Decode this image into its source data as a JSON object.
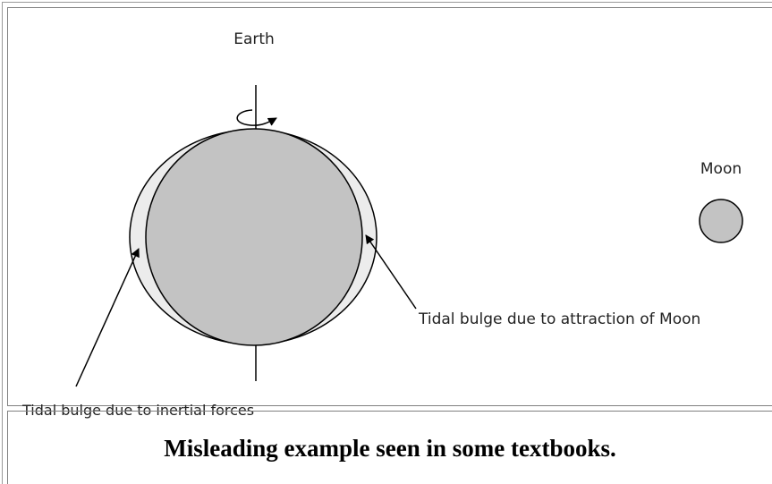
{
  "diagram": {
    "earth_label": "Earth",
    "moon_label": "Moon",
    "labels": [
      "Tidal bulge due to attraction of Moon",
      "Tidal bulge due to inertial forces"
    ]
  },
  "caption": "Misleading example seen in some textbooks."
}
